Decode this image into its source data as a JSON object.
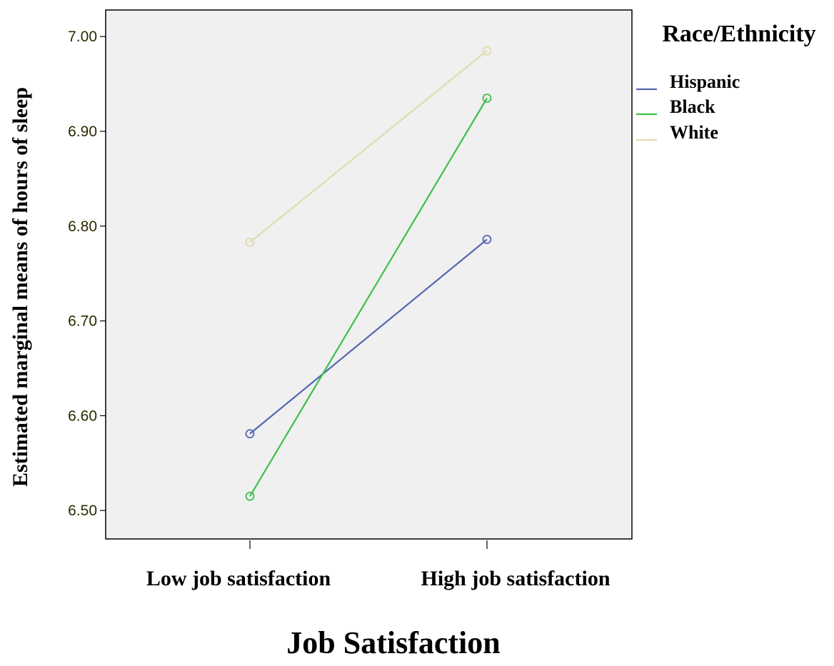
{
  "chart_data": {
    "type": "line",
    "xlabel": "Job Satisfaction",
    "ylabel": "Estimated marginal means of hours of sleep",
    "categories": [
      "Low job satisfaction",
      "High job satisfaction"
    ],
    "ylim": [
      6.47,
      7.028
    ],
    "yticks": [
      "6.50",
      "6.60",
      "6.70",
      "6.80",
      "6.90",
      "7.00"
    ],
    "grid": false,
    "legend": {
      "title": "Race/Ethnicity",
      "placement": "top-right, outside plot"
    },
    "series": [
      {
        "name": "Hispanic",
        "color": "#5566b0",
        "values": [
          6.581,
          6.786
        ]
      },
      {
        "name": "Black",
        "color": "#3cc04a",
        "values": [
          6.515,
          6.935
        ]
      },
      {
        "name": "White",
        "color": "#e0dcad",
        "values": [
          6.783,
          6.985
        ]
      }
    ],
    "marker": "open-circle",
    "plot_background": "#f0f0f0"
  }
}
